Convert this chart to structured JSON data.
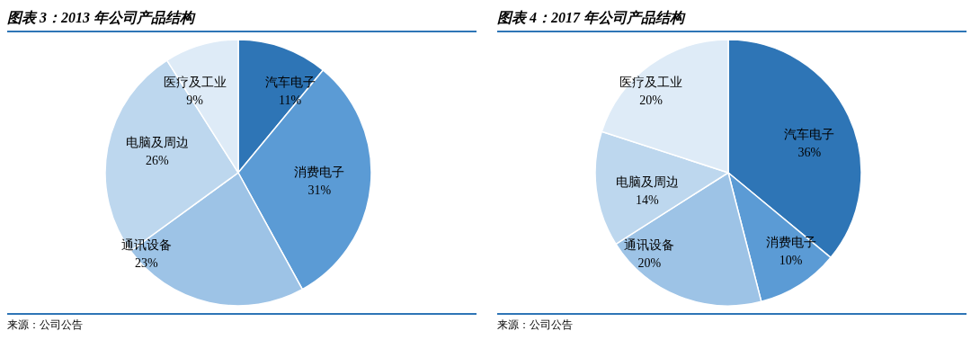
{
  "chart_data": [
    {
      "type": "pie",
      "title": "图表 3：2013 年公司产品结构",
      "categories": [
        "汽车电子",
        "消费电子",
        "通讯设备",
        "电脑及周边",
        "医疗及工业"
      ],
      "values": [
        11,
        31,
        23,
        26,
        9
      ],
      "value_labels": [
        "11%",
        "31%",
        "23%",
        "26%",
        "9%"
      ],
      "colors": [
        "#2e75b6",
        "#5b9bd5",
        "#9dc3e6",
        "#bdd7ee",
        "#deebf7"
      ],
      "legend": false,
      "annotations": [
        "来源：公司公告"
      ]
    },
    {
      "type": "pie",
      "title": "图表 4：2017 年公司产品结构",
      "categories": [
        "汽车电子",
        "消费电子",
        "通讯设备",
        "电脑及周边",
        "医疗及工业"
      ],
      "values": [
        36,
        10,
        20,
        14,
        20
      ],
      "value_labels": [
        "36%",
        "10%",
        "20%",
        "14%",
        "20%"
      ],
      "colors": [
        "#2e75b6",
        "#5b9bd5",
        "#9dc3e6",
        "#bdd7ee",
        "#deebf7"
      ],
      "legend": false,
      "annotations": [
        "来源：公司公告"
      ]
    }
  ]
}
